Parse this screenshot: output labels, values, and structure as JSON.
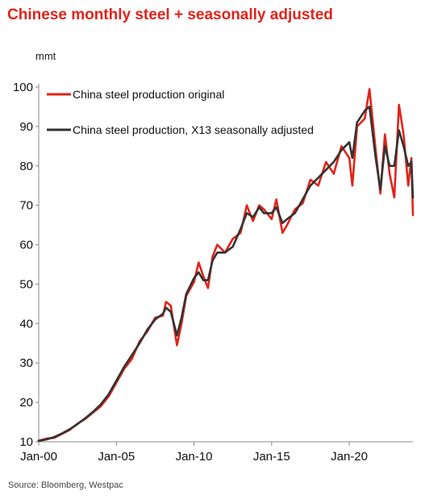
{
  "title": "Chinese monthly steel + seasonally adjusted",
  "source": "Source:  Bloomberg,  Westpac",
  "chart_data": {
    "type": "line",
    "ylabel": "mmt",
    "ylim": [
      10,
      100
    ],
    "yticks": [
      10,
      20,
      30,
      40,
      50,
      60,
      70,
      80,
      90,
      100
    ],
    "xlim": [
      2000.0,
      2024.1
    ],
    "xticks": [
      {
        "label": "Jan-00",
        "value": 2000.0
      },
      {
        "label": "Jan-05",
        "value": 2005.0
      },
      {
        "label": "Jan-10",
        "value": 2010.0
      },
      {
        "label": "Jan-15",
        "value": 2015.0
      },
      {
        "label": "Jan-20",
        "value": 2020.0
      }
    ],
    "legend_position": "top-left",
    "series": [
      {
        "name": "China steel production original",
        "color": "#e2231a",
        "points": [
          [
            2000.0,
            10.3
          ],
          [
            2000.5,
            10.8
          ],
          [
            2001.0,
            11.0
          ],
          [
            2001.5,
            12.0
          ],
          [
            2002.0,
            13.0
          ],
          [
            2002.5,
            14.6
          ],
          [
            2003.0,
            15.8
          ],
          [
            2003.5,
            17.4
          ],
          [
            2004.0,
            19.0
          ],
          [
            2004.5,
            21.5
          ],
          [
            2005.0,
            25.0
          ],
          [
            2005.5,
            28.5
          ],
          [
            2006.0,
            31.0
          ],
          [
            2006.5,
            35.5
          ],
          [
            2007.0,
            38.0
          ],
          [
            2007.5,
            41.5
          ],
          [
            2008.0,
            42.0
          ],
          [
            2008.2,
            45.5
          ],
          [
            2008.5,
            44.5
          ],
          [
            2008.9,
            34.5
          ],
          [
            2009.2,
            40.0
          ],
          [
            2009.5,
            47.0
          ],
          [
            2010.0,
            50.5
          ],
          [
            2010.3,
            55.5
          ],
          [
            2010.6,
            52.0
          ],
          [
            2010.9,
            49.0
          ],
          [
            2011.2,
            57.0
          ],
          [
            2011.5,
            60.0
          ],
          [
            2012.0,
            58.0
          ],
          [
            2012.5,
            61.5
          ],
          [
            2013.0,
            63.0
          ],
          [
            2013.4,
            70.0
          ],
          [
            2013.8,
            66.0
          ],
          [
            2014.2,
            70.0
          ],
          [
            2014.5,
            69.0
          ],
          [
            2015.0,
            66.5
          ],
          [
            2015.3,
            71.5
          ],
          [
            2015.7,
            63.0
          ],
          [
            2016.0,
            65.0
          ],
          [
            2016.5,
            69.0
          ],
          [
            2017.0,
            70.5
          ],
          [
            2017.5,
            76.5
          ],
          [
            2018.0,
            75.0
          ],
          [
            2018.5,
            81.0
          ],
          [
            2019.0,
            78.0
          ],
          [
            2019.5,
            85.0
          ],
          [
            2020.0,
            82.0
          ],
          [
            2020.2,
            75.0
          ],
          [
            2020.5,
            90.0
          ],
          [
            2021.0,
            92.0
          ],
          [
            2021.3,
            99.5
          ],
          [
            2021.7,
            84.0
          ],
          [
            2022.0,
            73.0
          ],
          [
            2022.3,
            88.0
          ],
          [
            2022.6,
            78.0
          ],
          [
            2022.9,
            72.0
          ],
          [
            2023.2,
            95.5
          ],
          [
            2023.5,
            88.0
          ],
          [
            2023.8,
            75.0
          ],
          [
            2024.0,
            82.0
          ],
          [
            2024.1,
            67.5
          ]
        ]
      },
      {
        "name": "China steel production, X13 seasonally adjusted",
        "color": "#333333",
        "points": [
          [
            2000.0,
            10.2
          ],
          [
            2000.5,
            10.6
          ],
          [
            2001.0,
            11.2
          ],
          [
            2001.5,
            12.1
          ],
          [
            2002.0,
            13.2
          ],
          [
            2002.5,
            14.5
          ],
          [
            2003.0,
            16.0
          ],
          [
            2003.5,
            17.6
          ],
          [
            2004.0,
            19.5
          ],
          [
            2004.5,
            22.0
          ],
          [
            2005.0,
            25.5
          ],
          [
            2005.5,
            29.0
          ],
          [
            2006.0,
            32.0
          ],
          [
            2006.5,
            35.0
          ],
          [
            2007.0,
            38.5
          ],
          [
            2007.5,
            41.0
          ],
          [
            2008.0,
            42.5
          ],
          [
            2008.2,
            44.0
          ],
          [
            2008.5,
            43.0
          ],
          [
            2008.9,
            37.0
          ],
          [
            2009.2,
            41.5
          ],
          [
            2009.5,
            47.5
          ],
          [
            2010.0,
            51.5
          ],
          [
            2010.3,
            53.0
          ],
          [
            2010.6,
            51.0
          ],
          [
            2010.9,
            51.0
          ],
          [
            2011.2,
            56.0
          ],
          [
            2011.5,
            58.0
          ],
          [
            2012.0,
            58.0
          ],
          [
            2012.5,
            59.5
          ],
          [
            2013.0,
            64.0
          ],
          [
            2013.4,
            68.0
          ],
          [
            2013.8,
            67.0
          ],
          [
            2014.2,
            69.5
          ],
          [
            2014.5,
            68.0
          ],
          [
            2015.0,
            68.0
          ],
          [
            2015.3,
            69.5
          ],
          [
            2015.7,
            65.5
          ],
          [
            2016.0,
            66.5
          ],
          [
            2016.5,
            68.0
          ],
          [
            2017.0,
            71.5
          ],
          [
            2017.5,
            75.0
          ],
          [
            2018.0,
            77.0
          ],
          [
            2018.5,
            79.0
          ],
          [
            2019.0,
            81.0
          ],
          [
            2019.5,
            84.0
          ],
          [
            2020.0,
            86.0
          ],
          [
            2020.2,
            82.0
          ],
          [
            2020.5,
            91.0
          ],
          [
            2021.0,
            94.0
          ],
          [
            2021.3,
            95.0
          ],
          [
            2021.7,
            82.0
          ],
          [
            2022.0,
            74.0
          ],
          [
            2022.3,
            85.0
          ],
          [
            2022.6,
            80.0
          ],
          [
            2022.9,
            80.0
          ],
          [
            2023.2,
            89.0
          ],
          [
            2023.5,
            85.0
          ],
          [
            2023.8,
            80.0
          ],
          [
            2024.0,
            81.0
          ],
          [
            2024.1,
            72.0
          ]
        ]
      }
    ]
  }
}
